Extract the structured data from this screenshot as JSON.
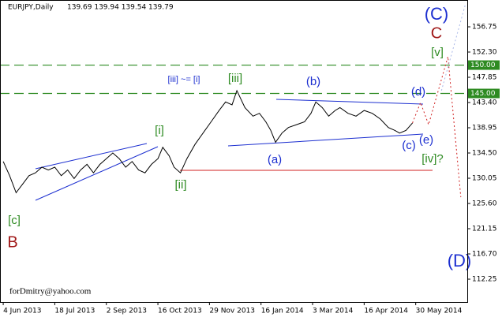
{
  "chart_data": {
    "type": "line",
    "title": "EURJPY,Daily",
    "subtitle": "139.69 139.94 139.54 139.79",
    "annotations": [
      "(C)",
      "C",
      "[v]",
      "(d)",
      "(b)",
      "[iii]",
      "[iii] ~= [i]",
      "[i]",
      "[ii]",
      "(a)",
      "(c)",
      "(e)",
      "[iv]?",
      "[c]",
      "B",
      "(D)",
      "forDmitry@yahoo.com"
    ],
    "xlim": [
      -2,
      288
    ],
    "xticks": [
      {
        "value": 0,
        "label": "4 Jun 2013"
      },
      {
        "value": 32,
        "label": "18 Jul 2013"
      },
      {
        "value": 64,
        "label": "2 Sep 2013"
      },
      {
        "value": 96,
        "label": "16 Oct 2013"
      },
      {
        "value": 128,
        "label": "29 Nov 2013"
      },
      {
        "value": 160,
        "label": "16 Jan 2014"
      },
      {
        "value": 192,
        "label": "3 Mar 2014"
      },
      {
        "value": 224,
        "label": "16 Apr 2014"
      },
      {
        "value": 256,
        "label": "30 May 2014"
      }
    ],
    "ylim": [
      108.22,
      161.48
    ],
    "yticks": [
      156.75,
      {
        "value": 152.3,
        "label": "152.30"
      },
      147.85,
      {
        "value": 143.4,
        "label": "143.40"
      },
      138.95,
      {
        "value": 134.5,
        "label": "134.50"
      },
      130.05,
      {
        "value": 125.6,
        "label": "125.60"
      },
      121.15,
      {
        "value": 116.7,
        "label": "116.70"
      },
      112.25
    ],
    "levels": [
      {
        "value": 150,
        "label": "150.00"
      },
      {
        "value": 145,
        "label": "145.00"
      }
    ],
    "level_color": "#2e8b22",
    "series": [
      {
        "color": "#000000",
        "x": [
          0,
          4,
          8,
          12,
          16,
          20,
          24,
          28,
          32,
          36,
          40,
          44,
          48,
          52,
          56,
          60,
          64,
          68,
          72,
          76,
          80,
          84,
          88,
          92,
          96,
          99,
          103,
          106,
          110,
          114,
          119,
          124,
          129,
          134,
          138,
          142,
          145,
          150,
          155,
          159,
          163,
          166,
          169,
          173,
          177,
          182,
          187,
          191,
          194,
          198,
          202,
          206,
          209,
          214,
          219,
          224,
          229,
          234,
          239,
          243,
          246,
          250,
          254
        ],
        "values": [
          133.0,
          130.5,
          127.5,
          129.0,
          130.5,
          131.0,
          132.0,
          131.5,
          132.0,
          130.5,
          131.5,
          130.0,
          131.5,
          132.5,
          131.0,
          132.5,
          133.5,
          134.5,
          133.5,
          132.0,
          133.0,
          131.5,
          131.0,
          132.5,
          133.5,
          135.5,
          134.0,
          132.0,
          131.0,
          133.5,
          136.0,
          138.0,
          140.0,
          142.0,
          143.5,
          143.0,
          145.5,
          142.5,
          141.0,
          141.5,
          140.0,
          138.5,
          136.4,
          138.0,
          139.0,
          139.5,
          140.0,
          141.5,
          143.5,
          142.5,
          141.0,
          142.0,
          142.5,
          141.5,
          141.0,
          142.0,
          141.5,
          140.5,
          139.0,
          138.5,
          138.0,
          138.5,
          139.8
        ]
      },
      {
        "color": "#d02020",
        "dash": "2,3",
        "x": [
          254,
          259,
          264,
          276,
          284
        ],
        "values": [
          139.8,
          143.4,
          139.5,
          151.5,
          126.7
        ]
      },
      {
        "color": "#aab8e8",
        "dash": "2,3",
        "x": [
          272,
          287
        ],
        "values": [
          145.5,
          160.9
        ]
      }
    ]
  }
}
